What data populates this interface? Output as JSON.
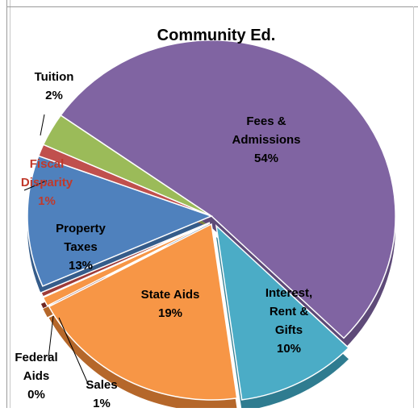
{
  "chart_data": {
    "type": "pie",
    "title": "Community Ed.",
    "slices": [
      {
        "name": "Fees & Admissions",
        "lines": [
          "Fees &",
          "Admissions",
          "54%"
        ],
        "value": 54,
        "color": "#8064A2",
        "side": "#5E4A78"
      },
      {
        "name": "Interest, Rent & Gifts",
        "lines": [
          "Interest,",
          "Rent &",
          "Gifts",
          "10%"
        ],
        "value": 10,
        "color": "#4BACC6",
        "side": "#2F7C90"
      },
      {
        "name": "State Aids",
        "lines": [
          "State Aids",
          "19%"
        ],
        "value": 19,
        "color": "#F79646",
        "side": "#B5672A"
      },
      {
        "name": "Sales",
        "lines": [
          "Sales",
          "1%"
        ],
        "value": 1,
        "color": "#F79646",
        "side": "#B5672A"
      },
      {
        "name": "Federal Aids",
        "lines": [
          "Federal",
          "Aids",
          "0%"
        ],
        "value": 0,
        "color": "#9E3B38",
        "side": "#6E2523"
      },
      {
        "name": "Property Taxes",
        "lines": [
          "Property",
          "Taxes",
          "13%"
        ],
        "value": 13,
        "color": "#4F81BD",
        "side": "#355C8A"
      },
      {
        "name": "Fiscal Disparity",
        "lines": [
          "Fiscal",
          "Disparity",
          "1%"
        ],
        "value": 1,
        "color": "#C0504D",
        "side": "#8A3431"
      },
      {
        "name": "Tuition",
        "lines": [
          "Tuition",
          "2%"
        ],
        "value": 2,
        "color": "#9BBB59",
        "side": "#6F8A3C"
      }
    ]
  }
}
